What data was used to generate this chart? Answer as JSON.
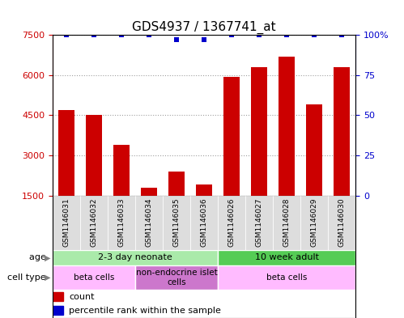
{
  "title": "GDS4937 / 1367741_at",
  "samples": [
    "GSM1146031",
    "GSM1146032",
    "GSM1146033",
    "GSM1146034",
    "GSM1146035",
    "GSM1146036",
    "GSM1146026",
    "GSM1146027",
    "GSM1146028",
    "GSM1146029",
    "GSM1146030"
  ],
  "counts": [
    4700,
    4500,
    3400,
    1800,
    2400,
    1900,
    5950,
    6300,
    6700,
    4900,
    6300
  ],
  "percentile": [
    100,
    100,
    100,
    100,
    97,
    97,
    100,
    100,
    100,
    100,
    100
  ],
  "ylim_left": [
    1500,
    7500
  ],
  "ylim_right": [
    0,
    100
  ],
  "yticks_left": [
    1500,
    3000,
    4500,
    6000,
    7500
  ],
  "yticks_right": [
    0,
    25,
    50,
    75,
    100
  ],
  "bar_color": "#cc0000",
  "dot_color": "#0000cc",
  "age_groups": [
    {
      "label": "2-3 day neonate",
      "start": 0,
      "end": 6,
      "color": "#aaeaaa"
    },
    {
      "label": "10 week adult",
      "start": 6,
      "end": 11,
      "color": "#55cc55"
    }
  ],
  "cell_type_groups": [
    {
      "label": "beta cells",
      "start": 0,
      "end": 3,
      "color": "#ffbbff"
    },
    {
      "label": "non-endocrine islet\ncells",
      "start": 3,
      "end": 6,
      "color": "#cc77cc"
    },
    {
      "label": "beta cells",
      "start": 6,
      "end": 11,
      "color": "#ffbbff"
    }
  ],
  "legend_items": [
    {
      "color": "#cc0000",
      "label": "count"
    },
    {
      "color": "#0000cc",
      "label": "percentile rank within the sample"
    }
  ],
  "bg_color": "#ffffff",
  "grid_color": "#888888",
  "title_fontsize": 11,
  "tick_fontsize": 8,
  "ann_fontsize": 8
}
